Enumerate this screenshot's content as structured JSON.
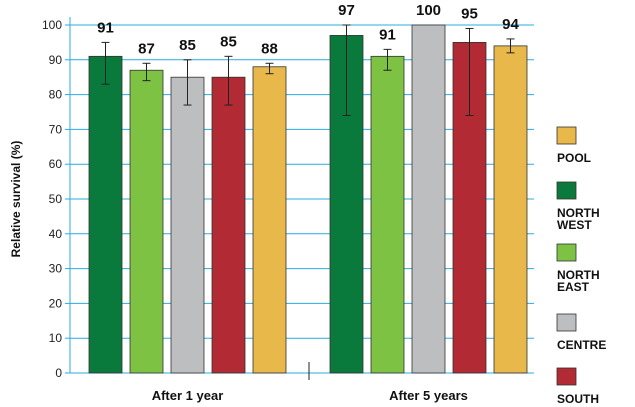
{
  "chart_data": {
    "type": "bar",
    "ylabel": "Relative survival (%)",
    "ylim": [
      0,
      100
    ],
    "yticks": [
      0,
      10,
      20,
      30,
      40,
      50,
      60,
      70,
      80,
      90,
      100
    ],
    "grid": true,
    "legend_position": "right",
    "groups": [
      "After 1 year",
      "After 5 years"
    ],
    "series": [
      {
        "name": "NORTH WEST",
        "color": "#0a7a3c",
        "values": [
          91,
          97
        ],
        "error_low": [
          83,
          74
        ],
        "error_high": [
          95,
          100
        ]
      },
      {
        "name": "NORTH EAST",
        "color": "#7dc242",
        "values": [
          87,
          91
        ],
        "error_low": [
          84,
          87
        ],
        "error_high": [
          89,
          93
        ]
      },
      {
        "name": "CENTRE",
        "color": "#bcbec0",
        "values": [
          85,
          100
        ],
        "error_low": [
          77,
          100
        ],
        "error_high": [
          90,
          100
        ]
      },
      {
        "name": "SOUTH",
        "color": "#b22a33",
        "values": [
          85,
          95
        ],
        "error_low": [
          77,
          74
        ],
        "error_high": [
          91,
          99
        ]
      },
      {
        "name": "POOL",
        "color": "#e8b84a",
        "values": [
          88,
          94
        ],
        "error_low": [
          86,
          92
        ],
        "error_high": [
          89,
          96
        ]
      }
    ],
    "value_labels": [
      "91",
      "87",
      "85",
      "85",
      "88",
      "97",
      "91",
      "100",
      "95",
      "94"
    ],
    "legend": [
      {
        "label": "POOL",
        "color": "#e8b84a"
      },
      {
        "label": "NORTH WEST",
        "color": "#0a7a3c"
      },
      {
        "label": "NORTH EAST",
        "color": "#7dc242"
      },
      {
        "label": "CENTRE",
        "color": "#bcbec0"
      },
      {
        "label": "SOUTH",
        "color": "#b22a33"
      }
    ],
    "gridline_color": "#29abe2"
  }
}
